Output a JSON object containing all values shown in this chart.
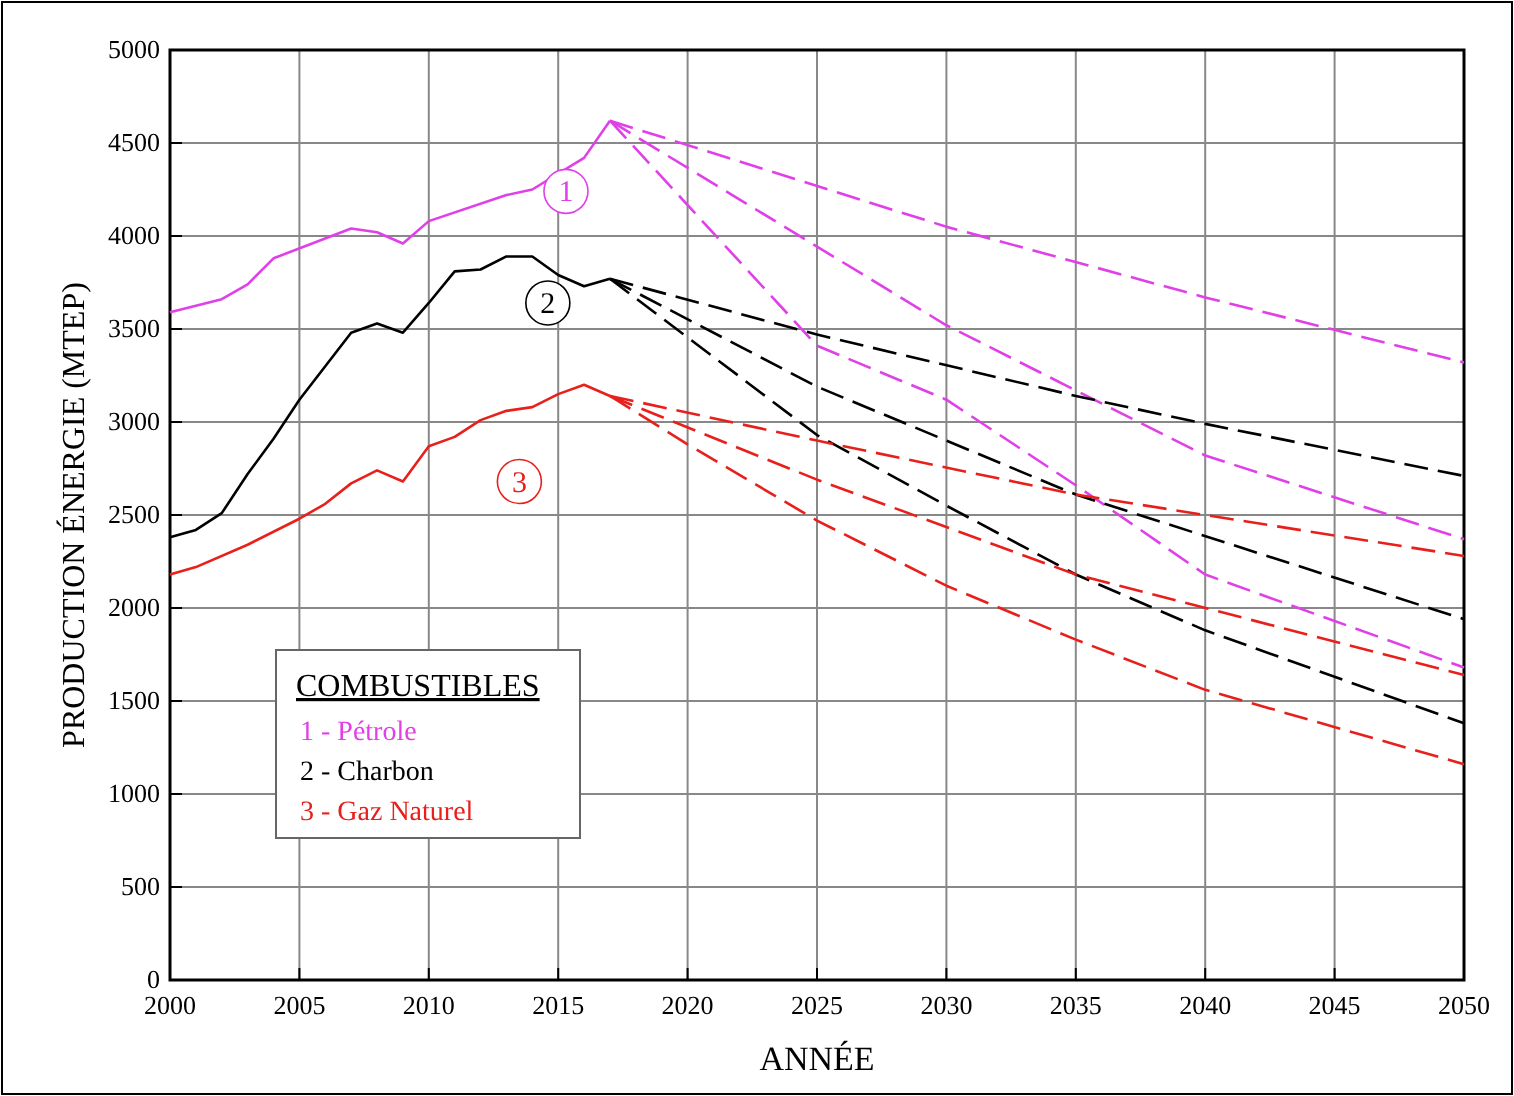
{
  "chart_data": {
    "type": "line",
    "xlabel": "ANNÉE",
    "ylabel": "PRODUCTION ÉNERGIE (MTEP)",
    "legend_title": "COMBUSTIBLES",
    "legend": "bottom left",
    "grid": true,
    "marker": "none",
    "xlim": [
      2000,
      2050
    ],
    "xticks": [
      2000,
      2005,
      2010,
      2015,
      2020,
      2025,
      2030,
      2035,
      2040,
      2045,
      2050
    ],
    "ylim": [
      0,
      5000
    ],
    "yticks": [
      0,
      500,
      1000,
      1500,
      2000,
      2500,
      3000,
      3500,
      4000,
      4500,
      5000
    ],
    "series": [
      {
        "name": "1 - Pétrole",
        "color": "#e040e8",
        "line_style": "solid",
        "x": [
          2000,
          2002,
          2003,
          2004,
          2007,
          2008,
          2009,
          2010,
          2013,
          2014,
          2016,
          2017
        ],
        "values": [
          3590,
          3660,
          3740,
          3880,
          4040,
          4020,
          3960,
          4080,
          4220,
          4250,
          4420,
          4620
        ]
      },
      {
        "name": "2 - Charbon",
        "color": "#000000",
        "line_style": "solid",
        "x": [
          2000,
          2001,
          2002,
          2003,
          2004,
          2005,
          2006,
          2007,
          2008,
          2009,
          2010,
          2011,
          2012,
          2013,
          2014,
          2015,
          2016,
          2017
        ],
        "values": [
          2380,
          2420,
          2510,
          2720,
          2910,
          3120,
          3300,
          3480,
          3530,
          3480,
          3640,
          3810,
          3820,
          3890,
          3890,
          3790,
          3730,
          3770
        ]
      },
      {
        "name": "3 - Gaz Naturel",
        "color": "#e8201c",
        "line_style": "solid",
        "x": [
          2000,
          2001,
          2003,
          2005,
          2006,
          2007,
          2008,
          2009,
          2010,
          2011,
          2012,
          2013,
          2014,
          2015,
          2016,
          2017
        ],
        "values": [
          2180,
          2220,
          2340,
          2480,
          2560,
          2670,
          2740,
          2680,
          2870,
          2920,
          3010,
          3060,
          3080,
          3150,
          3200,
          3140
        ]
      },
      {
        "color": "#e040e8",
        "line_style": "dashed",
        "x": [
          2017,
          2030,
          2040,
          2050
        ],
        "values": [
          4620,
          4050,
          3670,
          3320
        ]
      },
      {
        "color": "#e040e8",
        "line_style": "dashed",
        "x": [
          2017,
          2030,
          2040,
          2050
        ],
        "values": [
          4620,
          3520,
          2820,
          2370
        ]
      },
      {
        "color": "#e040e8",
        "line_style": "dashed",
        "x": [
          2017,
          2025,
          2030,
          2035,
          2040,
          2045,
          2050
        ],
        "values": [
          4620,
          3410,
          3120,
          2660,
          2180,
          1930,
          1680
        ]
      },
      {
        "color": "#000000",
        "line_style": "dashed",
        "x": [
          2017,
          2025,
          2035,
          2040,
          2050
        ],
        "values": [
          3770,
          3470,
          3140,
          2990,
          2710
        ]
      },
      {
        "color": "#000000",
        "line_style": "dashed",
        "x": [
          2017,
          2025,
          2035,
          2050
        ],
        "values": [
          3770,
          3190,
          2610,
          1940
        ]
      },
      {
        "color": "#000000",
        "line_style": "dashed",
        "x": [
          2017,
          2025,
          2030,
          2035,
          2040,
          2050
        ],
        "values": [
          3770,
          2930,
          2550,
          2180,
          1880,
          1380
        ]
      },
      {
        "color": "#e8201c",
        "line_style": "dashed",
        "x": [
          2017,
          2025,
          2035,
          2050
        ],
        "values": [
          3140,
          2900,
          2610,
          2280
        ]
      },
      {
        "color": "#e8201c",
        "line_style": "dashed",
        "x": [
          2017,
          2025,
          2035,
          2050
        ],
        "values": [
          3140,
          2690,
          2180,
          1640
        ]
      },
      {
        "color": "#e8201c",
        "line_style": "dashed",
        "x": [
          2017,
          2020,
          2025,
          2030,
          2035,
          2040,
          2050
        ],
        "values": [
          3140,
          2880,
          2470,
          2120,
          1830,
          1560,
          1160
        ]
      }
    ],
    "annotations": [
      {
        "text": "1",
        "x": 2015.3,
        "y": 4240
      },
      {
        "text": "2",
        "x": 2014.6,
        "y": 3640
      },
      {
        "text": "3",
        "x": 2013.5,
        "y": 2680
      }
    ]
  }
}
